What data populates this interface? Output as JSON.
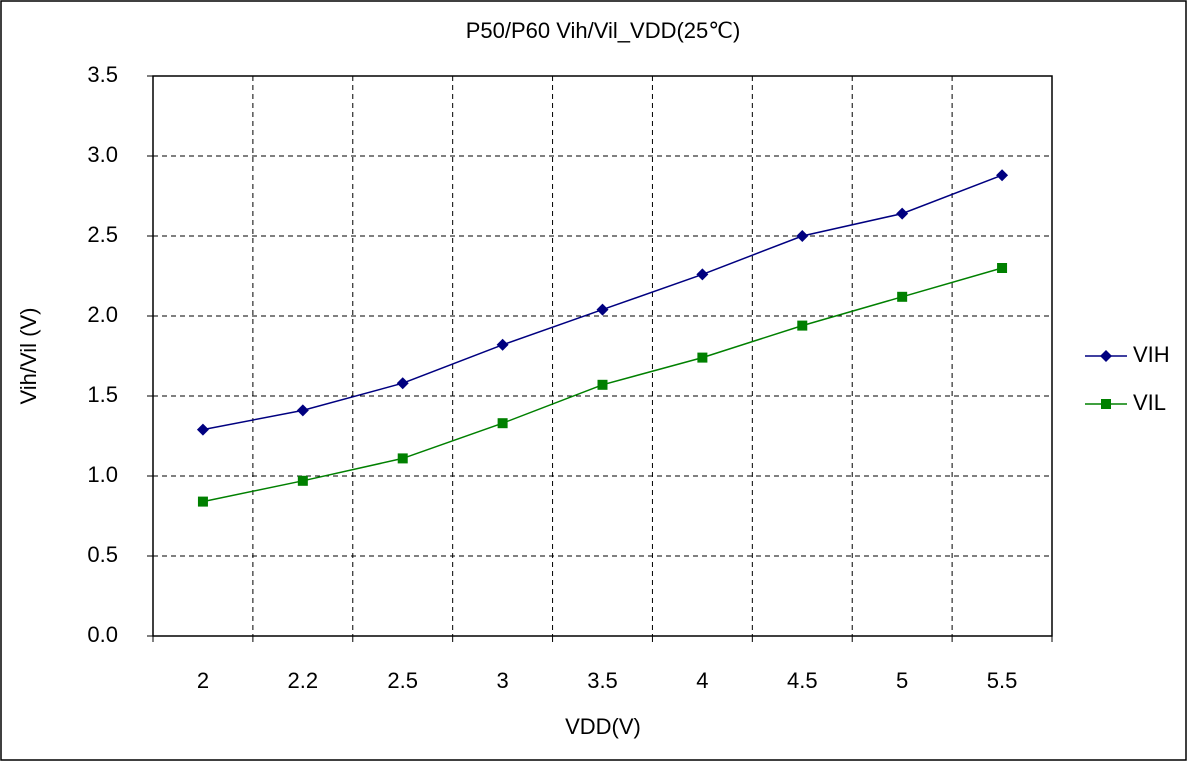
{
  "chart_data": {
    "type": "line",
    "title": "P50/P60 Vih/Vil_VDD(25℃)",
    "x_label": "VDD(V)",
    "y_label": "Vih/Vil (V)",
    "categories": [
      "2",
      "2.2",
      "2.5",
      "3",
      "3.5",
      "4",
      "4.5",
      "5",
      "5.5"
    ],
    "series": [
      {
        "name": "VIH",
        "color": "#000080",
        "marker": "diamond",
        "values": [
          1.29,
          1.41,
          1.58,
          1.82,
          2.04,
          2.26,
          2.5,
          2.64,
          2.88
        ]
      },
      {
        "name": "VIL",
        "color": "#008000",
        "marker": "square",
        "values": [
          0.84,
          0.97,
          1.11,
          1.33,
          1.57,
          1.74,
          1.94,
          2.12,
          2.3
        ]
      }
    ],
    "ylim": [
      0,
      3.5
    ],
    "yticks": [
      {
        "value": 0,
        "label": "0.0"
      },
      0.5,
      {
        "value": 1,
        "label": "1.0"
      },
      1.5,
      {
        "value": 2,
        "label": "2.0"
      },
      2.5,
      {
        "value": 3,
        "label": "3.0"
      },
      3.5
    ],
    "grid": true,
    "legend": "right"
  }
}
